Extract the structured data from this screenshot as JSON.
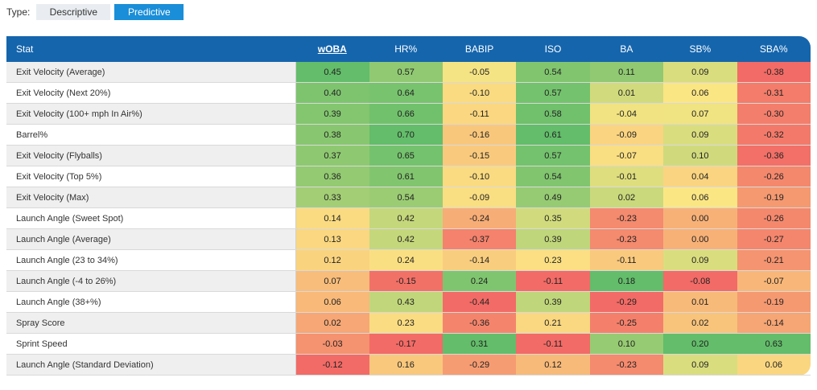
{
  "type_selector": {
    "label": "Type:",
    "options": [
      "Descriptive",
      "Predictive"
    ],
    "selected": "Predictive"
  },
  "table": {
    "stat_header": "Stat",
    "columns": [
      "wOBA",
      "HR%",
      "BABIP",
      "ISO",
      "BA",
      "SB%",
      "SBA%"
    ],
    "sorted_column": "wOBA",
    "rows": [
      {
        "stat": "Exit Velocity (Average)",
        "values": [
          "0.45",
          "0.57",
          "-0.05",
          "0.54",
          "0.11",
          "0.09",
          "-0.38"
        ]
      },
      {
        "stat": "Exit Velocity (Next 20%)",
        "values": [
          "0.40",
          "0.64",
          "-0.10",
          "0.57",
          "0.01",
          "0.06",
          "-0.31"
        ]
      },
      {
        "stat": "Exit Velocity (100+ mph In Air%)",
        "values": [
          "0.39",
          "0.66",
          "-0.11",
          "0.58",
          "-0.04",
          "0.07",
          "-0.30"
        ]
      },
      {
        "stat": "Barrel%",
        "values": [
          "0.38",
          "0.70",
          "-0.16",
          "0.61",
          "-0.09",
          "0.09",
          "-0.32"
        ]
      },
      {
        "stat": "Exit Velocity (Flyballs)",
        "values": [
          "0.37",
          "0.65",
          "-0.15",
          "0.57",
          "-0.07",
          "0.10",
          "-0.36"
        ]
      },
      {
        "stat": "Exit Velocity (Top 5%)",
        "values": [
          "0.36",
          "0.61",
          "-0.10",
          "0.54",
          "-0.01",
          "0.04",
          "-0.26"
        ]
      },
      {
        "stat": "Exit Velocity (Max)",
        "values": [
          "0.33",
          "0.54",
          "-0.09",
          "0.49",
          "0.02",
          "0.06",
          "-0.19"
        ]
      },
      {
        "stat": "Launch Angle (Sweet Spot)",
        "values": [
          "0.14",
          "0.42",
          "-0.24",
          "0.35",
          "-0.23",
          "0.00",
          "-0.26"
        ]
      },
      {
        "stat": "Launch Angle (Average)",
        "values": [
          "0.13",
          "0.42",
          "-0.37",
          "0.39",
          "-0.23",
          "0.00",
          "-0.27"
        ]
      },
      {
        "stat": "Launch Angle (23 to 34%)",
        "values": [
          "0.12",
          "0.24",
          "-0.14",
          "0.23",
          "-0.11",
          "0.09",
          "-0.21"
        ]
      },
      {
        "stat": "Launch Angle (-4 to 26%)",
        "values": [
          "0.07",
          "-0.15",
          "0.24",
          "-0.11",
          "0.18",
          "-0.08",
          "-0.07"
        ]
      },
      {
        "stat": "Launch Angle (38+%)",
        "values": [
          "0.06",
          "0.43",
          "-0.44",
          "0.39",
          "-0.29",
          "0.01",
          "-0.19"
        ]
      },
      {
        "stat": "Spray Score",
        "values": [
          "0.02",
          "0.23",
          "-0.36",
          "0.21",
          "-0.25",
          "0.02",
          "-0.14"
        ]
      },
      {
        "stat": "Sprint Speed",
        "values": [
          "-0.03",
          "-0.17",
          "0.31",
          "-0.11",
          "0.10",
          "0.20",
          "0.63"
        ]
      },
      {
        "stat": "Launch Angle (Standard Deviation)",
        "values": [
          "-0.12",
          "0.16",
          "-0.29",
          "0.12",
          "-0.23",
          "0.09",
          "0.06"
        ]
      }
    ]
  },
  "colors": {
    "header_bg": "#1565ad",
    "active_button": "#1a8ed8",
    "scale_low": "#f26b66",
    "scale_mid": "#fbe684",
    "scale_high": "#63bd6a"
  }
}
